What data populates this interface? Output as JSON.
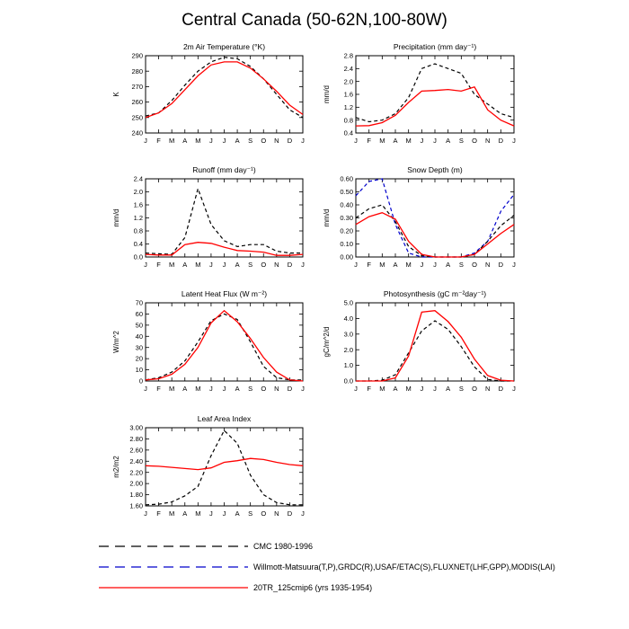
{
  "page_title": "Central Canada (50-62N,100-80W)",
  "months": [
    "J",
    "F",
    "M",
    "A",
    "M",
    "J",
    "J",
    "A",
    "S",
    "O",
    "N",
    "D",
    "J"
  ],
  "colors": {
    "cmc": "#000000",
    "obs": "#0000cc",
    "model": "#ff0000"
  },
  "legend": [
    {
      "label": "CMC 1980-1996",
      "color": "#000000",
      "dash": true
    },
    {
      "label": "Willmott-Matsuura(T,P),GRDC(R),USAF/ETAC(S),FLUXNET(LHF,GPP),MODIS(LAI)",
      "color": "#0000cc",
      "dash": true
    },
    {
      "label": "20TR_125cmip6 (yrs 1935-1954)",
      "color": "#ff0000",
      "dash": false
    }
  ],
  "chart_data": [
    {
      "type": "line",
      "title": "2m Air Temperature (°K)",
      "ylabel": "K",
      "ylim": [
        240,
        290
      ],
      "yticks": [
        "240",
        "250",
        "260",
        "270",
        "280",
        "290"
      ],
      "yticks_num": [
        240,
        250,
        260,
        270,
        280,
        290
      ],
      "series": [
        {
          "key": "cmc",
          "values": [
            251,
            253,
            261,
            271,
            280,
            286,
            289,
            288,
            283,
            275,
            265,
            255,
            250
          ]
        },
        {
          "key": "model",
          "values": [
            250,
            253,
            259,
            268,
            277,
            284,
            286,
            286,
            282,
            275,
            267,
            258,
            252
          ]
        }
      ]
    },
    {
      "type": "line",
      "title": "Precipitation (mm day⁻¹)",
      "ylabel": "mm/d",
      "ylim": [
        0.4,
        2.8
      ],
      "yticks": [
        "0.4",
        "0.8",
        "1.2",
        "1.6",
        "2.0",
        "2.4",
        "2.8"
      ],
      "yticks_num": [
        0.4,
        0.8,
        1.2,
        1.6,
        2.0,
        2.4,
        2.8
      ],
      "series": [
        {
          "key": "cmc",
          "values": [
            0.88,
            0.75,
            0.8,
            1.0,
            1.5,
            2.4,
            2.55,
            2.4,
            2.25,
            1.6,
            1.3,
            1.0,
            0.88
          ]
        },
        {
          "key": "model",
          "values": [
            0.62,
            0.63,
            0.72,
            0.95,
            1.35,
            1.7,
            1.72,
            1.75,
            1.7,
            1.83,
            1.12,
            0.8,
            0.62
          ]
        }
      ]
    },
    {
      "type": "line",
      "title": "Runoff (mm day⁻¹)",
      "ylabel": "mm/d",
      "ylim": [
        0.0,
        2.4
      ],
      "yticks": [
        "0.0",
        "0.4",
        "0.8",
        "1.2",
        "1.6",
        "2.0",
        "2.4"
      ],
      "yticks_num": [
        0.0,
        0.4,
        0.8,
        1.2,
        1.6,
        2.0,
        2.4
      ],
      "series": [
        {
          "key": "cmc",
          "values": [
            0.12,
            0.1,
            0.08,
            0.6,
            2.1,
            1.0,
            0.5,
            0.32,
            0.38,
            0.38,
            0.18,
            0.12,
            0.12
          ]
        },
        {
          "key": "model",
          "values": [
            0.08,
            0.06,
            0.06,
            0.38,
            0.45,
            0.42,
            0.3,
            0.2,
            0.18,
            0.15,
            0.05,
            0.05,
            0.08
          ]
        }
      ]
    },
    {
      "type": "line",
      "title": "Snow Depth (m)",
      "ylabel": "mm/d",
      "ylim": [
        0.0,
        0.6
      ],
      "yticks": [
        "0.00",
        "0.10",
        "0.20",
        "0.30",
        "0.40",
        "0.50",
        "0.60"
      ],
      "yticks_num": [
        0.0,
        0.1,
        0.2,
        0.3,
        0.4,
        0.5,
        0.6
      ],
      "series": [
        {
          "key": "obs",
          "values": [
            0.47,
            0.58,
            0.6,
            0.25,
            0.03,
            0.0,
            0.0,
            0.0,
            0.0,
            0.03,
            0.12,
            0.35,
            0.48
          ]
        },
        {
          "key": "cmc",
          "values": [
            0.3,
            0.37,
            0.4,
            0.27,
            0.08,
            0.01,
            0.0,
            0.0,
            0.0,
            0.02,
            0.12,
            0.24,
            0.32
          ]
        },
        {
          "key": "model",
          "values": [
            0.25,
            0.31,
            0.34,
            0.29,
            0.12,
            0.02,
            0.0,
            0.0,
            0.0,
            0.02,
            0.1,
            0.18,
            0.25
          ]
        }
      ]
    },
    {
      "type": "line",
      "title": "Latent Heat Flux (W m⁻²)",
      "ylabel": "W/m^2",
      "ylim": [
        0,
        70
      ],
      "yticks": [
        "0",
        "10",
        "20",
        "30",
        "40",
        "50",
        "60",
        "70"
      ],
      "yticks_num": [
        0,
        10,
        20,
        30,
        40,
        50,
        60,
        70
      ],
      "series": [
        {
          "key": "cmc",
          "values": [
            1,
            3,
            8,
            18,
            35,
            54,
            60,
            55,
            35,
            13,
            3,
            1,
            1
          ]
        },
        {
          "key": "model",
          "values": [
            1,
            2,
            6,
            15,
            30,
            52,
            63,
            53,
            38,
            21,
            8,
            1,
            0
          ]
        }
      ]
    },
    {
      "type": "line",
      "title": "Photosynthesis (gC m⁻²day⁻¹)",
      "ylabel": "gC/m^2/d",
      "ylim": [
        0.0,
        5.0
      ],
      "yticks": [
        "0.0",
        "1.0",
        "2.0",
        "3.0",
        "4.0",
        "5.0"
      ],
      "yticks_num": [
        0,
        1,
        2,
        3,
        4,
        5
      ],
      "series": [
        {
          "key": "cmc",
          "values": [
            0.0,
            0.0,
            0.05,
            0.4,
            1.8,
            3.2,
            3.85,
            3.3,
            2.2,
            0.9,
            0.1,
            0.0,
            0.0
          ]
        },
        {
          "key": "model",
          "values": [
            0.0,
            0.0,
            0.0,
            0.2,
            1.6,
            4.4,
            4.5,
            3.8,
            2.8,
            1.4,
            0.35,
            0.05,
            0.0
          ]
        }
      ]
    },
    {
      "type": "line",
      "title": "Leaf Area Index",
      "ylabel": "m2/m2",
      "ylim": [
        1.6,
        3.0
      ],
      "yticks": [
        "1.60",
        "1.80",
        "2.00",
        "2.20",
        "2.40",
        "2.60",
        "2.80",
        "3.00"
      ],
      "yticks_num": [
        1.6,
        1.8,
        2.0,
        2.2,
        2.4,
        2.6,
        2.8,
        3.0
      ],
      "series": [
        {
          "key": "cmc",
          "values": [
            1.62,
            1.63,
            1.67,
            1.78,
            1.95,
            2.5,
            2.95,
            2.72,
            2.15,
            1.8,
            1.66,
            1.62,
            1.62
          ]
        },
        {
          "key": "model",
          "values": [
            2.32,
            2.31,
            2.29,
            2.27,
            2.25,
            2.28,
            2.38,
            2.41,
            2.45,
            2.43,
            2.38,
            2.34,
            2.32
          ]
        }
      ]
    }
  ]
}
